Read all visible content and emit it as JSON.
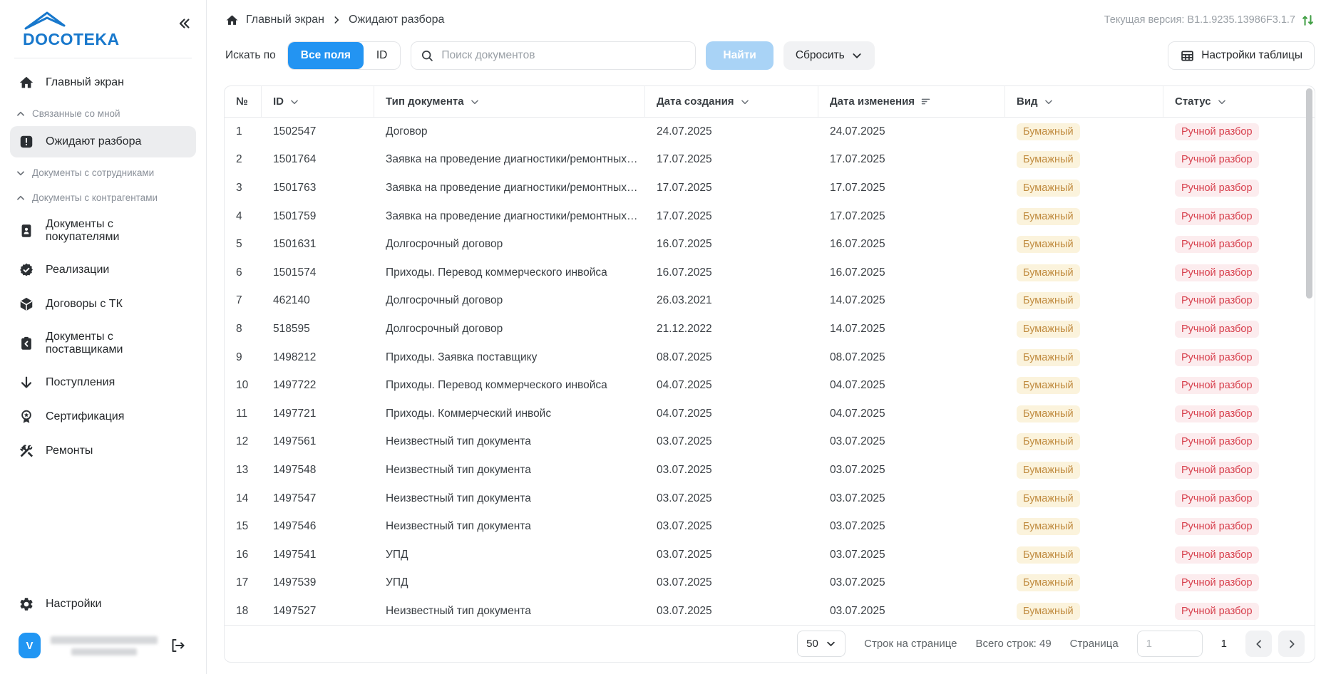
{
  "colors": {
    "accent_blue": "#2394F2",
    "logo_blue": "#1878CC",
    "avatar_blue": "#2196F3",
    "version_icon_green": "#43A047",
    "badge_kind_bg": "#FBF3DC",
    "badge_kind_text": "#C08B3F",
    "badge_status_bg": "#FCECEE",
    "badge_status_text": "#D7404D",
    "selected_nav_bg": "#ECEDEF"
  },
  "sidebar": {
    "logo": "DOCOTEKA",
    "nav": [
      {
        "type": "item",
        "name": "sidebar-item-home",
        "icon": "home-icon",
        "label": "Главный экран",
        "selected": false
      },
      {
        "type": "section",
        "name": "sidebar-section-related",
        "icon": "chevron-up-icon",
        "label": "Связанные со мной"
      },
      {
        "type": "item",
        "name": "sidebar-item-pending",
        "icon": "alert-square-icon",
        "label": "Ожидают разбора",
        "selected": true
      },
      {
        "type": "section",
        "name": "sidebar-section-employees",
        "icon": "chevron-down-icon",
        "label": "Документы с сотрудниками"
      },
      {
        "type": "section",
        "name": "sidebar-section-contractors",
        "icon": "chevron-up-icon",
        "label": "Документы с контрагентами"
      },
      {
        "type": "item",
        "name": "sidebar-item-buyers",
        "icon": "document-person-icon",
        "label": "Документы с покупателями",
        "selected": false
      },
      {
        "type": "item",
        "name": "sidebar-item-sales",
        "icon": "seal-check-icon",
        "label": "Реализации",
        "selected": false
      },
      {
        "type": "item",
        "name": "sidebar-item-tk-contracts",
        "icon": "package-icon",
        "label": "Договоры с ТК",
        "selected": false
      },
      {
        "type": "item",
        "name": "sidebar-item-suppliers",
        "icon": "clipboard-arrow-icon",
        "label": "Документы с поставщиками",
        "selected": false
      },
      {
        "type": "item",
        "name": "sidebar-item-receipts",
        "icon": "arrow-down-icon",
        "label": "Поступления",
        "selected": false
      },
      {
        "type": "item",
        "name": "sidebar-item-certification",
        "icon": "medal-icon",
        "label": "Сертификация",
        "selected": false
      },
      {
        "type": "item",
        "name": "sidebar-item-repairs",
        "icon": "tools-icon",
        "label": "Ремонты",
        "selected": false
      }
    ],
    "settings_label": "Настройки",
    "user": {
      "avatar_initial": "V"
    }
  },
  "header": {
    "breadcrumb": [
      "Главный экран",
      "Ожидают разбора"
    ],
    "version_label": "Текущая версия: B1.1.9235.13986F3.1.7"
  },
  "toolbar": {
    "search_by_label": "Искать по",
    "toggle_all_fields": "Все поля",
    "toggle_id": "ID",
    "search_placeholder": "Поиск документов",
    "find_button": "Найти",
    "reset_button": "Сбросить",
    "table_settings_button": "Настройки таблицы"
  },
  "table": {
    "columns": [
      "№",
      "ID",
      "Тип документа",
      "Дата создания",
      "Дата изменения",
      "Вид",
      "Статус"
    ],
    "rows": [
      {
        "num": "1",
        "id": "1502547",
        "type": "Договор",
        "created": "24.07.2025",
        "modified": "24.07.2025",
        "kind": "Бумажный",
        "status": "Ручной разбор"
      },
      {
        "num": "2",
        "id": "1501764",
        "type": "Заявка на проведение диагностики/ремонтных р...",
        "created": "17.07.2025",
        "modified": "17.07.2025",
        "kind": "Бумажный",
        "status": "Ручной разбор"
      },
      {
        "num": "3",
        "id": "1501763",
        "type": "Заявка на проведение диагностики/ремонтных р...",
        "created": "17.07.2025",
        "modified": "17.07.2025",
        "kind": "Бумажный",
        "status": "Ручной разбор"
      },
      {
        "num": "4",
        "id": "1501759",
        "type": "Заявка на проведение диагностики/ремонтных р...",
        "created": "17.07.2025",
        "modified": "17.07.2025",
        "kind": "Бумажный",
        "status": "Ручной разбор"
      },
      {
        "num": "5",
        "id": "1501631",
        "type": "Долгосрочный договор",
        "created": "16.07.2025",
        "modified": "16.07.2025",
        "kind": "Бумажный",
        "status": "Ручной разбор"
      },
      {
        "num": "6",
        "id": "1501574",
        "type": "Приходы. Перевод коммерческого инвойса",
        "created": "16.07.2025",
        "modified": "16.07.2025",
        "kind": "Бумажный",
        "status": "Ручной разбор"
      },
      {
        "num": "7",
        "id": "462140",
        "type": "Долгосрочный договор",
        "created": "26.03.2021",
        "modified": "14.07.2025",
        "kind": "Бумажный",
        "status": "Ручной разбор"
      },
      {
        "num": "8",
        "id": "518595",
        "type": "Долгосрочный договор",
        "created": "21.12.2022",
        "modified": "14.07.2025",
        "kind": "Бумажный",
        "status": "Ручной разбор"
      },
      {
        "num": "9",
        "id": "1498212",
        "type": "Приходы. Заявка поставщику",
        "created": "08.07.2025",
        "modified": "08.07.2025",
        "kind": "Бумажный",
        "status": "Ручной разбор"
      },
      {
        "num": "10",
        "id": "1497722",
        "type": "Приходы. Перевод коммерческого инвойса",
        "created": "04.07.2025",
        "modified": "04.07.2025",
        "kind": "Бумажный",
        "status": "Ручной разбор"
      },
      {
        "num": "11",
        "id": "1497721",
        "type": "Приходы. Коммерческий инвойс",
        "created": "04.07.2025",
        "modified": "04.07.2025",
        "kind": "Бумажный",
        "status": "Ручной разбор"
      },
      {
        "num": "12",
        "id": "1497561",
        "type": "Неизвестный тип документа",
        "created": "03.07.2025",
        "modified": "03.07.2025",
        "kind": "Бумажный",
        "status": "Ручной разбор"
      },
      {
        "num": "13",
        "id": "1497548",
        "type": "Неизвестный тип документа",
        "created": "03.07.2025",
        "modified": "03.07.2025",
        "kind": "Бумажный",
        "status": "Ручной разбор"
      },
      {
        "num": "14",
        "id": "1497547",
        "type": "Неизвестный тип документа",
        "created": "03.07.2025",
        "modified": "03.07.2025",
        "kind": "Бумажный",
        "status": "Ручной разбор"
      },
      {
        "num": "15",
        "id": "1497546",
        "type": "Неизвестный тип документа",
        "created": "03.07.2025",
        "modified": "03.07.2025",
        "kind": "Бумажный",
        "status": "Ручной разбор"
      },
      {
        "num": "16",
        "id": "1497541",
        "type": "УПД",
        "created": "03.07.2025",
        "modified": "03.07.2025",
        "kind": "Бумажный",
        "status": "Ручной разбор"
      },
      {
        "num": "17",
        "id": "1497539",
        "type": "УПД",
        "created": "03.07.2025",
        "modified": "03.07.2025",
        "kind": "Бумажный",
        "status": "Ручной разбор"
      },
      {
        "num": "18",
        "id": "1497527",
        "type": "Неизвестный тип документа",
        "created": "03.07.2025",
        "modified": "03.07.2025",
        "kind": "Бумажный",
        "status": "Ручной разбор"
      }
    ]
  },
  "pagination": {
    "page_size": "50",
    "rows_per_page_label": "Строк на странице",
    "total_rows_label": "Всего строк: 49",
    "page_label": "Страница",
    "page_input_placeholder": "1",
    "current_page": "1"
  },
  "icons": [
    "home-icon",
    "alert-square-icon",
    "document-person-icon",
    "seal-check-icon",
    "package-icon",
    "clipboard-arrow-icon",
    "arrow-down-icon",
    "medal-icon",
    "tools-icon",
    "gear-icon",
    "logout-icon",
    "collapse-sidebar-icon",
    "breadcrumb-home-icon",
    "chevron-right-icon",
    "version-swap-icon",
    "search-icon",
    "chevron-down-icon",
    "table-grid-icon",
    "sort-lines-icon",
    "chevron-left-icon",
    "scrollbar"
  ]
}
